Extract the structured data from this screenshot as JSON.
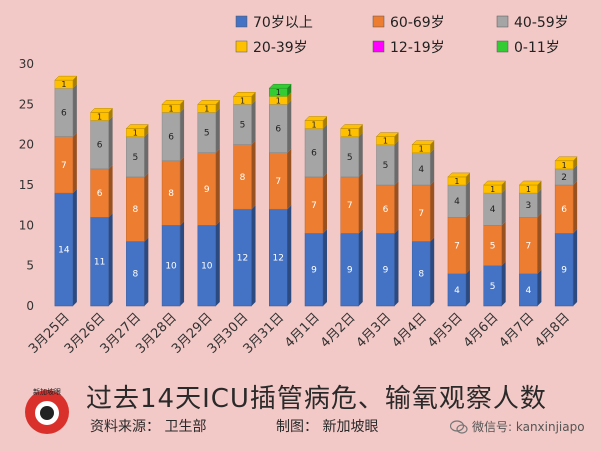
{
  "chart_data": {
    "type": "bar",
    "stacked": true,
    "ylim": [
      0,
      30
    ],
    "yticks": [
      0,
      5,
      10,
      15,
      20,
      25,
      30
    ],
    "grid": false,
    "legend_position": "top",
    "categories": [
      "3月25日",
      "3月26日",
      "3月27日",
      "3月28日",
      "3月29日",
      "3月30日",
      "3月31日",
      "4月1日",
      "4月2日",
      "4月3日",
      "4月4日",
      "4月5日",
      "4月6日",
      "4月7日",
      "4月8日"
    ],
    "series": [
      {
        "name": "70岁以上",
        "color": "#4472c4",
        "values": [
          14,
          11,
          8,
          10,
          10,
          12,
          12,
          9,
          9,
          9,
          8,
          4,
          5,
          4,
          9
        ]
      },
      {
        "name": "60-69岁",
        "color": "#ed7d31",
        "values": [
          7,
          6,
          8,
          8,
          9,
          8,
          7,
          7,
          7,
          6,
          7,
          7,
          5,
          7,
          6
        ]
      },
      {
        "name": "40-59岁",
        "color": "#a5a5a5",
        "values": [
          6,
          6,
          5,
          6,
          5,
          5,
          6,
          6,
          5,
          5,
          4,
          4,
          4,
          3,
          2
        ]
      },
      {
        "name": "20-39岁",
        "color": "#ffc000",
        "values": [
          1,
          1,
          1,
          1,
          1,
          1,
          1,
          1,
          1,
          1,
          1,
          1,
          1,
          1,
          1
        ]
      },
      {
        "name": "12-19岁",
        "color": "#ff00ff",
        "values": [
          0,
          0,
          0,
          0,
          0,
          0,
          0,
          0,
          0,
          0,
          0,
          0,
          0,
          0,
          0
        ]
      },
      {
        "name": "0-11岁",
        "color": "#33cc33",
        "values": [
          0,
          0,
          0,
          0,
          0,
          0,
          1,
          0,
          0,
          0,
          0,
          0,
          0,
          0,
          0
        ]
      }
    ],
    "title": "过去14天ICU插管病危、输氧观察人数"
  },
  "footer": {
    "source": "资料来源：  卫生部",
    "credit": "制图：  新加坡眼",
    "wechat": "微信号: kanxinjiapo",
    "logo_text": "新加坡眼"
  }
}
